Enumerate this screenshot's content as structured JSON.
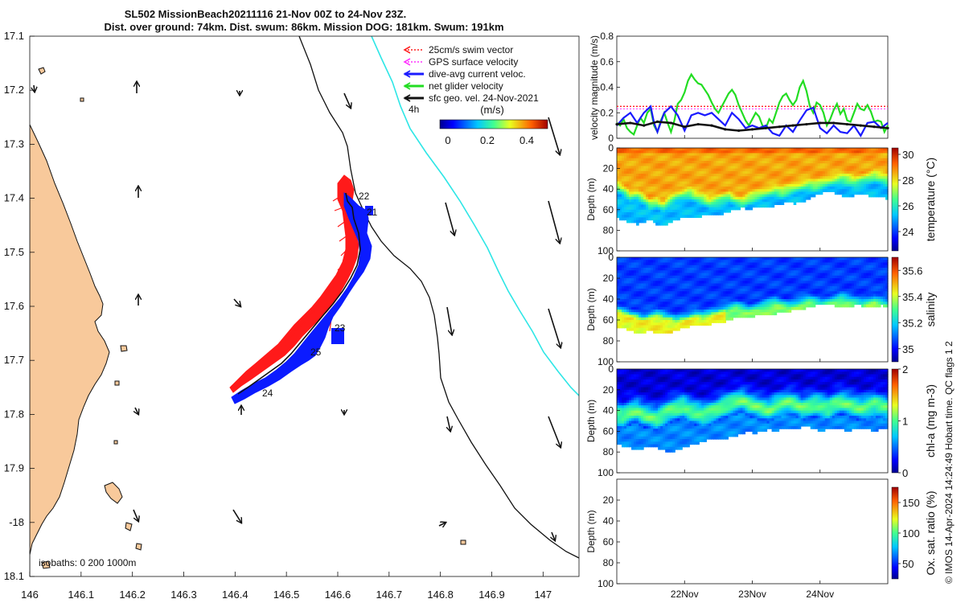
{
  "header": {
    "line1": "SL502 MissionBeach20211116 21-Nov 00Z to 24-Nov 23Z.",
    "line2": "Dist. over ground: 74km. Dist. swum: 86km. Mission DOG: 181km. Swum: 191km"
  },
  "map": {
    "lon_ticks": [
      "146",
      "146.1",
      "146.2",
      "146.3",
      "146.4",
      "146.5",
      "146.6",
      "146.7",
      "146.8",
      "146.9",
      "147"
    ],
    "lat_ticks": [
      "17.1",
      "17.2",
      "17.3",
      "17.4",
      "17.5",
      "17.6",
      "17.7",
      "17.8",
      "17.9",
      "-18",
      "18.1"
    ],
    "lon_range": [
      146.0,
      147.07
    ],
    "lat_range": [
      17.1,
      18.1
    ],
    "isobaths_label": "isobaths: 0   200  1000m",
    "day_labels": [
      "22",
      "21",
      "23",
      "25",
      "24"
    ],
    "colors": {
      "land": "#f8c99b",
      "track_red": "#ff1a1a",
      "track_blue": "#0b1bff",
      "isobath_1000": "#2ee6e6"
    }
  },
  "legend": {
    "items": [
      {
        "label": "25cm/s swim vector",
        "color": "#ff2020",
        "style": "dotted"
      },
      {
        "label": "GPS surface velocity",
        "color": "#ff33ff",
        "style": "dotted"
      },
      {
        "label": "dive-avg current veloc.",
        "color": "#1a1aff",
        "style": "solid"
      },
      {
        "label": "net glider velocity",
        "color": "#22dd22",
        "style": "solid"
      },
      {
        "label": "sfc geo. vel. 24-Nov-2021",
        "color": "#111111",
        "style": "solid"
      }
    ],
    "scale_label": "4h",
    "colorbar_unit": "(m/s)",
    "colorbar_ticks": [
      "0",
      "0.2",
      "0.4"
    ]
  },
  "chart_data": [
    {
      "type": "line",
      "id": "velocity",
      "ylabel": "velocity magnitude (m/s)",
      "ylim": [
        0,
        0.8
      ],
      "yticks": [
        "0",
        "0.2",
        "0.4",
        "0.6",
        "0.8"
      ],
      "series": [
        {
          "name": "net glider velocity",
          "color": "#22dd22",
          "x": [
            0,
            0.05,
            0.1,
            0.15,
            0.2,
            0.25,
            0.3,
            0.35,
            0.4,
            0.45,
            0.5,
            0.55,
            0.6,
            0.65,
            0.7,
            0.75,
            0.8,
            0.85,
            0.9,
            0.95,
            1,
            1.05,
            1.1,
            1.15,
            1.2,
            1.25,
            1.3,
            1.35,
            1.4,
            1.45,
            1.5,
            1.55,
            1.6,
            1.65,
            1.7,
            1.75,
            1.8,
            1.85,
            1.9,
            1.95,
            2,
            2.05,
            2.1,
            2.15,
            2.2,
            2.25,
            2.3,
            2.35,
            2.4,
            2.45,
            2.5,
            2.55,
            2.6,
            2.65,
            2.7,
            2.75,
            2.8,
            2.85,
            2.9,
            2.95,
            3,
            3.05,
            3.1,
            3.15,
            3.2,
            3.25,
            3.3,
            3.35,
            3.4,
            3.45,
            3.5,
            3.55,
            3.6,
            3.65,
            3.7,
            3.75,
            3.8,
            3.85,
            3.9,
            3.95,
            4
          ],
          "values": [
            0.12,
            0.1,
            0.15,
            0.08,
            0.05,
            0.03,
            0.1,
            0.16,
            0.12,
            0.2,
            0.23,
            0.1,
            0.05,
            0.14,
            0.2,
            0.12,
            0.05,
            0.14,
            0.27,
            0.3,
            0.36,
            0.45,
            0.5,
            0.46,
            0.43,
            0.42,
            0.38,
            0.34,
            0.28,
            0.23,
            0.2,
            0.25,
            0.3,
            0.35,
            0.38,
            0.34,
            0.26,
            0.2,
            0.14,
            0.1,
            0.15,
            0.2,
            0.17,
            0.1,
            0.08,
            0.15,
            0.12,
            0.2,
            0.28,
            0.33,
            0.35,
            0.3,
            0.26,
            0.3,
            0.4,
            0.45,
            0.37,
            0.25,
            0.2,
            0.28,
            0.26,
            0.2,
            0.1,
            0.15,
            0.22,
            0.27,
            0.19,
            0.23,
            0.14,
            0.13,
            0.2,
            0.27,
            0.23,
            0.22,
            0.26,
            0.21,
            0.13,
            0.14,
            0.13,
            0.05,
            0.1
          ]
        },
        {
          "name": "dive-avg current veloc.",
          "color": "#1a1aff",
          "x": [
            0,
            0.1,
            0.2,
            0.3,
            0.4,
            0.5,
            0.55,
            0.6,
            0.7,
            0.8,
            0.9,
            1,
            1.1,
            1.2,
            1.3,
            1.4,
            1.5,
            1.6,
            1.7,
            1.8,
            1.9,
            2,
            2.1,
            2.2,
            2.3,
            2.4,
            2.5,
            2.6,
            2.7,
            2.8,
            2.9,
            3,
            3.1,
            3.2,
            3.3,
            3.4,
            3.5,
            3.6,
            3.7,
            3.8,
            3.9,
            4
          ],
          "values": [
            0.1,
            0.16,
            0.2,
            0.12,
            0.2,
            0.25,
            0.12,
            0.05,
            0.2,
            0.25,
            0.18,
            0.06,
            0.18,
            0.2,
            0.18,
            0.2,
            0.15,
            0.1,
            0.2,
            0.15,
            0.08,
            0.1,
            0.08,
            0.1,
            0.04,
            0.02,
            0.1,
            0.05,
            0.14,
            0.22,
            0.24,
            0.08,
            0.04,
            0.1,
            0.05,
            0.04,
            0.1,
            0.02,
            0.12,
            0.13,
            0.08,
            0.12
          ]
        },
        {
          "name": "sfc geo. velocity",
          "color": "#111111",
          "x": [
            0,
            0.2,
            0.4,
            0.6,
            0.8,
            1,
            1.2,
            1.4,
            1.6,
            1.8,
            2,
            2.2,
            2.4,
            2.6,
            2.8,
            3,
            3.2,
            3.4,
            3.6,
            3.8,
            4
          ],
          "values": [
            0.11,
            0.12,
            0.1,
            0.13,
            0.12,
            0.09,
            0.11,
            0.1,
            0.07,
            0.06,
            0.07,
            0.08,
            0.09,
            0.1,
            0.11,
            0.12,
            0.12,
            0.11,
            0.1,
            0.09,
            0.08
          ]
        }
      ],
      "reference_line": {
        "name": "25cm/s swim vector",
        "value": 0.25,
        "color": "#ff2020"
      }
    },
    {
      "type": "heatmap",
      "id": "temperature",
      "ylabel": "Depth (m)",
      "colorbar_label": "temperature (°C)",
      "ylim": [
        100,
        0
      ],
      "yticks": [
        "0",
        "20",
        "40",
        "60",
        "80",
        "100"
      ],
      "colorbar_range": [
        22.5,
        30.5
      ],
      "colorbar_ticks": [
        "24",
        "26",
        "28",
        "30"
      ],
      "mixed_layer_value": 28.6,
      "deep_value": 25.2,
      "thermocline_depth_m": [
        30,
        34,
        40,
        38,
        42,
        48,
        46,
        50,
        44,
        40,
        38,
        36,
        40,
        42,
        46,
        44,
        42,
        40,
        44,
        46,
        42,
        40,
        38,
        36,
        34,
        36,
        34,
        32,
        30,
        28,
        30,
        28,
        26,
        24,
        22,
        24,
        26,
        24,
        22,
        20,
        22,
        24
      ],
      "bottom_depth_m": [
        68,
        70,
        72,
        74,
        72,
        70,
        74,
        76,
        72,
        70,
        68,
        66,
        68,
        66,
        64,
        66,
        64,
        62,
        60,
        58,
        60,
        58,
        56,
        58,
        56,
        54,
        52,
        54,
        52,
        50,
        46,
        44,
        42,
        44,
        46,
        48,
        46,
        44,
        46,
        48,
        46,
        50
      ]
    },
    {
      "type": "heatmap",
      "id": "salinity",
      "ylabel": "Depth (m)",
      "colorbar_label": "salinity",
      "ylim": [
        100,
        0
      ],
      "yticks": [
        "0",
        "20",
        "40",
        "60",
        "80",
        "100"
      ],
      "colorbar_range": [
        34.9,
        35.7
      ],
      "colorbar_ticks": [
        "35",
        "35.2",
        "35.4",
        "35.6"
      ],
      "upper_value": 35.05,
      "lower_value": 35.35,
      "halocline_depth_m": [
        44,
        46,
        48,
        50,
        52,
        50,
        48,
        50,
        52,
        54,
        52,
        50,
        48,
        50,
        48,
        46,
        44,
        42,
        40,
        42,
        44,
        42,
        40,
        38,
        36,
        38,
        40,
        38,
        36,
        34,
        36,
        38,
        36,
        34,
        32,
        34,
        36,
        38,
        36,
        34,
        36,
        38
      ],
      "bottom_depth_m": [
        66,
        68,
        70,
        72,
        72,
        70,
        72,
        74,
        72,
        70,
        68,
        66,
        66,
        64,
        64,
        62,
        62,
        60,
        58,
        56,
        58,
        56,
        54,
        56,
        54,
        52,
        52,
        50,
        50,
        48,
        46,
        44,
        44,
        46,
        48,
        48,
        46,
        46,
        48,
        48,
        46,
        48
      ]
    },
    {
      "type": "heatmap",
      "id": "chla",
      "ylabel": "Depth (m)",
      "colorbar_label": "chl-a (mg m-3)",
      "ylim": [
        100,
        0
      ],
      "yticks": [
        "0",
        "20",
        "40",
        "60",
        "80",
        "100"
      ],
      "colorbar_range": [
        0,
        2
      ],
      "colorbar_ticks": [
        "0",
        "1",
        "2"
      ],
      "surface_value": 0.15,
      "max_layer_value": 1.05,
      "chl_max_depth_m": [
        44,
        46,
        42,
        40,
        44,
        46,
        48,
        44,
        40,
        38,
        36,
        40,
        42,
        44,
        42,
        40,
        36,
        34,
        32,
        30,
        34,
        36,
        38,
        40,
        36,
        34,
        32,
        34,
        38,
        36,
        34,
        36,
        38,
        34,
        32,
        34,
        36,
        38,
        36,
        34,
        36,
        38
      ],
      "bottom_depth_m": [
        72,
        74,
        76,
        78,
        76,
        74,
        76,
        78,
        80,
        78,
        76,
        74,
        72,
        70,
        68,
        66,
        68,
        66,
        64,
        62,
        60,
        62,
        60,
        58,
        60,
        58,
        56,
        58,
        56,
        56,
        58,
        60,
        58,
        56,
        58,
        60,
        58,
        56,
        58,
        60,
        58,
        56
      ]
    },
    {
      "type": "heatmap",
      "id": "oxygen",
      "ylabel": "Depth (m)",
      "colorbar_label": "Ox. sat. ratio (%)",
      "ylim": [
        100,
        0
      ],
      "yticks": [
        "20",
        "40",
        "60",
        "80",
        "100"
      ],
      "colorbar_range": [
        25,
        175
      ],
      "colorbar_ticks": [
        "50",
        "100",
        "150"
      ],
      "xtick_labels": [
        "22Nov",
        "23Nov",
        "24Nov"
      ],
      "xtick_positions": [
        1,
        2,
        3
      ],
      "xlim": [
        0,
        4
      ]
    }
  ],
  "footer": {
    "vertical_note": "© IMOS 14-Apr-2024 14:24:49 Hobart time. QC flags 1  2"
  }
}
